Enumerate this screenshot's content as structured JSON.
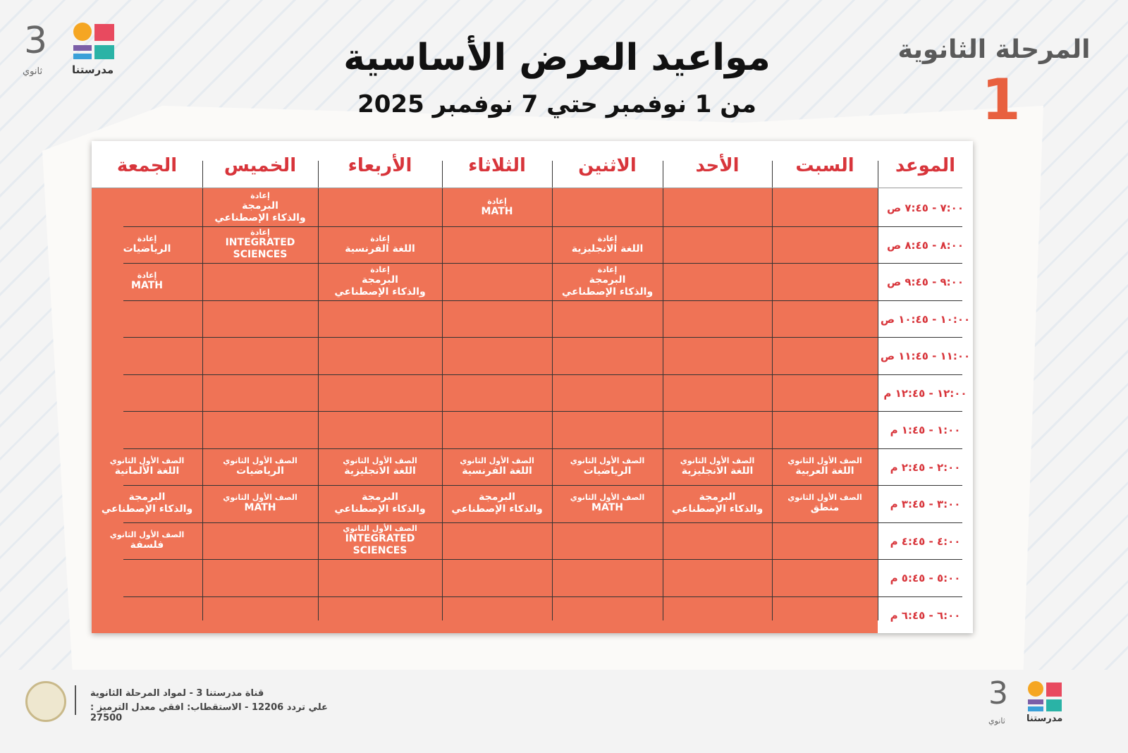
{
  "header": {
    "title": "مواعيد العرض الأساسية",
    "subtitle": "من 1 نوفمبر حتي 7 نوفمبر 2025",
    "stage": "المرحلة الثانوية",
    "stage_number": "1",
    "logo": {
      "number": "3",
      "tagline": "ثانوي",
      "brand": "مدرستنا"
    }
  },
  "table": {
    "time_header": "الموعد",
    "days": [
      "السبت",
      "الأحد",
      "الاثنين",
      "الثلاثاء",
      "الأربعاء",
      "الخميس",
      "الجمعة"
    ],
    "rows": [
      {
        "time": "٧:٠٠ - ٧:٤٥ ص",
        "cells": [
          null,
          null,
          null,
          {
            "tag": "إعادة",
            "lines": [
              "MATH"
            ]
          },
          null,
          {
            "tag": "إعادة",
            "lines": [
              "البرمجة",
              "والذكاء الإصطناعي"
            ]
          },
          null
        ]
      },
      {
        "time": "٨:٠٠ - ٨:٤٥ ص",
        "cells": [
          null,
          null,
          {
            "tag": "إعادة",
            "lines": [
              "اللغة الانجليزية"
            ]
          },
          null,
          {
            "tag": "إعادة",
            "lines": [
              "اللغة الفرنسية"
            ]
          },
          {
            "tag": "إعادة",
            "lines": [
              "INTEGRATED SCIENCES"
            ]
          },
          {
            "tag": "إعادة",
            "lines": [
              "الرياضيات"
            ]
          }
        ]
      },
      {
        "time": "٩:٠٠ - ٩:٤٥ ص",
        "cells": [
          null,
          null,
          {
            "tag": "إعادة",
            "lines": [
              "البرمجة",
              "والذكاء الإصطناعي"
            ]
          },
          null,
          {
            "tag": "إعادة",
            "lines": [
              "البرمجة",
              "والذكاء الإصطناعي"
            ]
          },
          null,
          {
            "tag": "إعادة",
            "lines": [
              "MATH"
            ]
          }
        ]
      },
      {
        "time": "١٠:٠٠ - ١٠:٤٥ ص",
        "cells": [
          null,
          null,
          null,
          null,
          null,
          null,
          null
        ]
      },
      {
        "time": "١١:٠٠ - ١١:٤٥ ص",
        "cells": [
          null,
          null,
          null,
          null,
          null,
          null,
          null
        ]
      },
      {
        "time": "١٢:٠٠ - ١٢:٤٥ م",
        "cells": [
          null,
          null,
          null,
          null,
          null,
          null,
          null
        ]
      },
      {
        "time": "١:٠٠ - ١:٤٥ م",
        "cells": [
          null,
          null,
          null,
          null,
          null,
          null,
          null
        ]
      },
      {
        "time": "٢:٠٠ - ٢:٤٥ م",
        "cells": [
          {
            "tag": "الصف الأول الثانوي",
            "lines": [
              "اللغة العربية"
            ]
          },
          {
            "tag": "الصف الأول الثانوي",
            "lines": [
              "اللغة الانجليزية"
            ]
          },
          {
            "tag": "الصف الأول الثانوي",
            "lines": [
              "الرياضيات"
            ]
          },
          {
            "tag": "الصف الأول الثانوي",
            "lines": [
              "اللغة الفرنسية"
            ]
          },
          {
            "tag": "الصف الأول الثانوي",
            "lines": [
              "اللغة الانجليزية"
            ]
          },
          {
            "tag": "الصف الأول الثانوي",
            "lines": [
              "الرياضيات"
            ]
          },
          {
            "tag": "الصف الأول الثانوي",
            "lines": [
              "اللغة الألمانية"
            ]
          }
        ]
      },
      {
        "time": "٣:٠٠ - ٣:٤٥ م",
        "cells": [
          {
            "tag": "الصف الأول الثانوي",
            "lines": [
              "منطق"
            ]
          },
          {
            "lines": [
              "البرمجة",
              "والذكاء الإصطناعي"
            ]
          },
          {
            "tag": "الصف الأول الثانوي",
            "lines": [
              "MATH"
            ]
          },
          {
            "lines": [
              "البرمجة",
              "والذكاء الإصطناعي"
            ]
          },
          {
            "lines": [
              "البرمجة",
              "والذكاء الإصطناعي"
            ]
          },
          {
            "tag": "الصف الأول الثانوي",
            "lines": [
              "MATH"
            ]
          },
          {
            "lines": [
              "البرمجة",
              "والذكاء الإصطناعي"
            ]
          }
        ]
      },
      {
        "time": "٤:٠٠ - ٤:٤٥ م",
        "cells": [
          null,
          null,
          null,
          null,
          {
            "tag": "الصف الأول الثانوي",
            "lines": [
              "INTEGRATED SCIENCES"
            ]
          },
          null,
          {
            "tag": "الصف الأول الثانوي",
            "lines": [
              "فلسفة"
            ]
          }
        ]
      },
      {
        "time": "٥:٠٠ - ٥:٤٥ م",
        "cells": [
          null,
          null,
          null,
          null,
          null,
          null,
          null
        ]
      },
      {
        "time": "٦:٠٠ - ٦:٤٥ م",
        "cells": [
          null,
          null,
          null,
          null,
          null,
          null,
          null
        ]
      }
    ]
  },
  "footer": {
    "channel": "قناة مدرستنا 3 - لمواد المرحلة الثانوية",
    "frequency": "علي تردد 12206 - الاستقطاب: افقي معدل الترميز : 27500",
    "logo": {
      "number": "3",
      "tagline": "ثانوي",
      "brand": "مدرستنا"
    }
  }
}
